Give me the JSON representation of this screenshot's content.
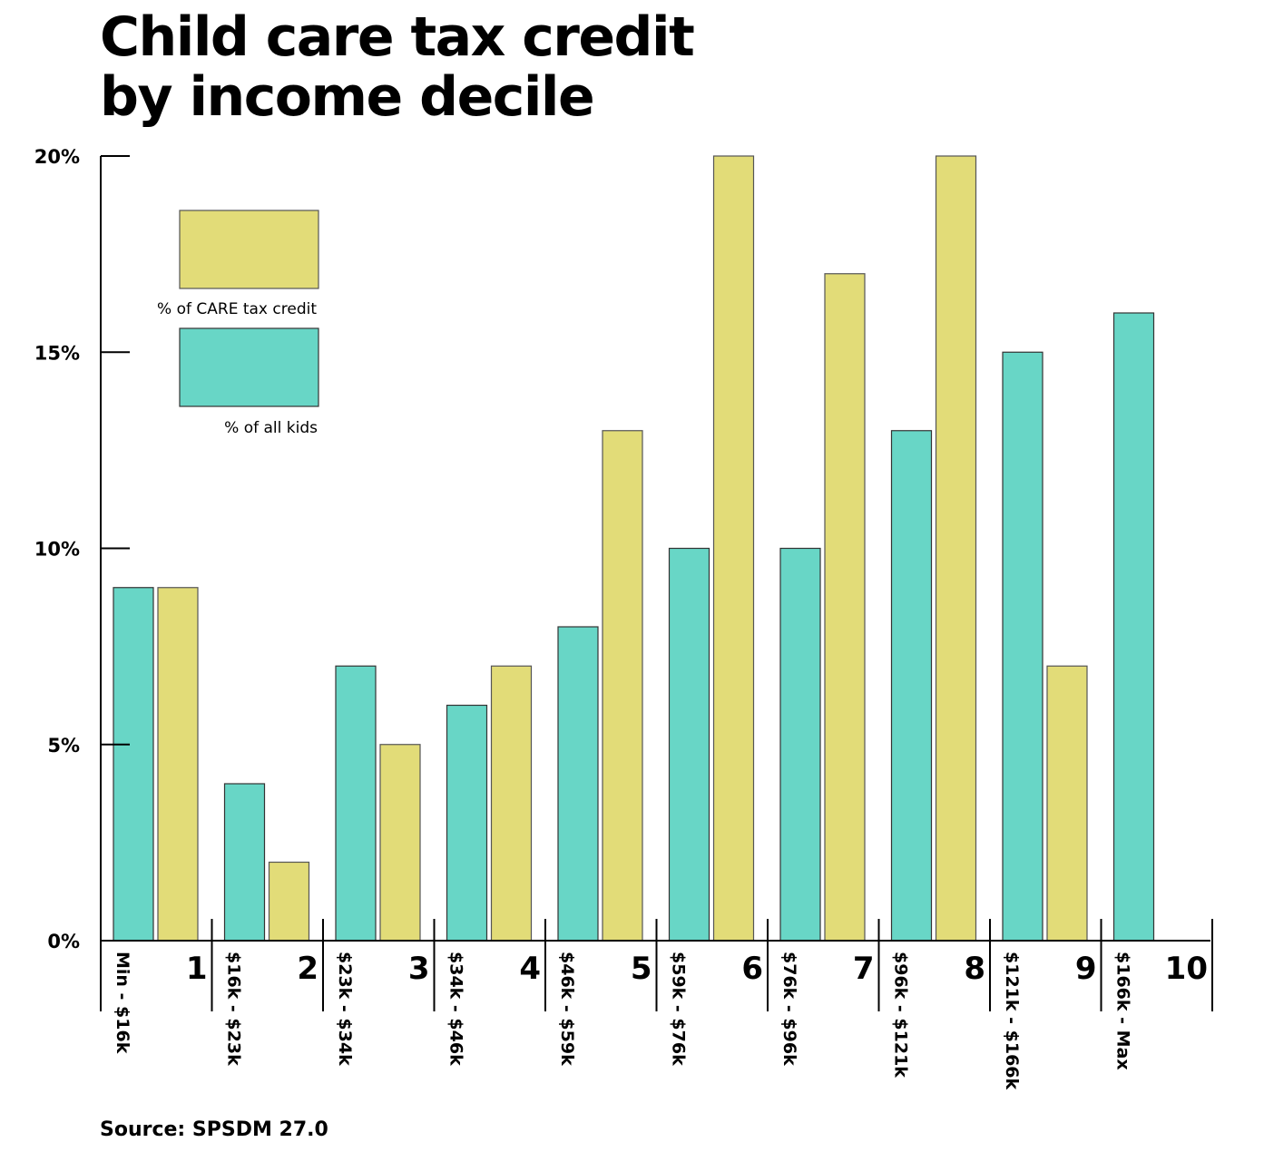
{
  "title_lines": [
    "Child care tax credit",
    "by income decile"
  ],
  "source": "Source: SPSDM 27.0",
  "colors": {
    "credit": "#e2dc78",
    "kids": "#68d6c6",
    "bar_stroke": "#555555",
    "axis": "#000000"
  },
  "legend": {
    "credit_label": "% of CARE tax credit",
    "kids_label": "% of all kids",
    "placement": "top-left"
  },
  "chart_data": {
    "type": "bar",
    "categories": [
      "1",
      "2",
      "3",
      "4",
      "5",
      "6",
      "7",
      "8",
      "9",
      "10"
    ],
    "category_ranges": [
      "Min - $16k",
      "$16k - $23k",
      "$23k - $34k",
      "$34k - $46k",
      "$46k - $59k",
      "$59k - $76k",
      "$76k - $96k",
      "$96k - $121k",
      "$121k - $166k",
      "$166k - Max"
    ],
    "series": [
      {
        "name": "% of all kids",
        "color": "#68d6c6",
        "values": [
          9,
          4,
          7,
          6,
          8,
          10,
          10,
          13,
          15,
          16
        ]
      },
      {
        "name": "% of CARE tax credit",
        "color": "#e2dc78",
        "values": [
          9,
          2,
          5,
          7,
          13,
          20,
          17,
          20,
          7,
          0
        ]
      }
    ],
    "yticks": [
      "0%",
      "5%",
      "10%",
      "15%",
      "20%"
    ],
    "ytick_values": [
      0,
      5,
      10,
      15,
      20
    ],
    "ylim": [
      0,
      20
    ],
    "grid": false,
    "xlabel": "",
    "ylabel": ""
  }
}
